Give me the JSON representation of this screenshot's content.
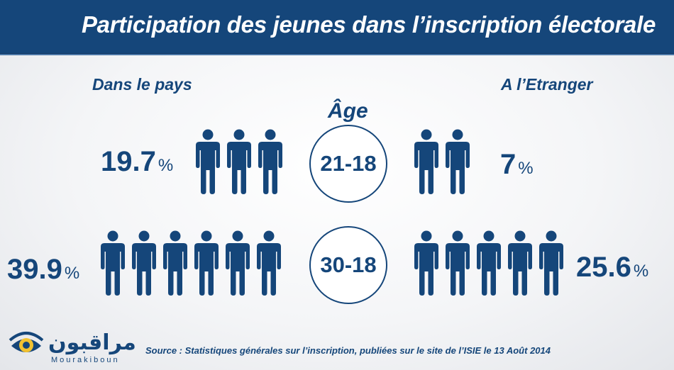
{
  "header": {
    "title": "Participation des jeunes dans l’inscription électorale"
  },
  "sections": {
    "left": "Dans le pays",
    "right": "A l’Etranger"
  },
  "age": {
    "label": "Âge",
    "rows": [
      {
        "range": "21-18",
        "pays": "19.7",
        "pays_icons": 3,
        "etranger": "7",
        "etranger_icons": 2
      },
      {
        "range": "30-18",
        "pays": "39.9",
        "pays_icons": 6,
        "etranger": "25.6",
        "etranger_icons": 5
      }
    ],
    "percent_symbol": "%"
  },
  "logo": {
    "arabic": "مراقبون",
    "latin": "Mourakiboun",
    "icon": "eye-icon"
  },
  "source": "Source : Statistiques générales sur l’inscription, publiées sur le site de l’ISIE le 13 Août 2014",
  "colors": {
    "primary": "#15467a",
    "accent": "#f2c230",
    "background": "#f4f5f7"
  }
}
